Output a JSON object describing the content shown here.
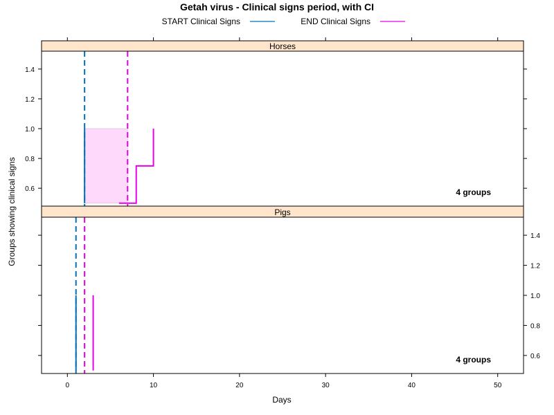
{
  "chart_data": {
    "type": "line",
    "title": "Getah virus - Clinical signs period, with CI",
    "xlabel": "Days",
    "ylabel": "Groups showing clinical signs",
    "xlim": [
      -3,
      53
    ],
    "x_ticks": [
      0,
      10,
      20,
      30,
      40,
      50
    ],
    "legend": {
      "placement": "top",
      "entries": [
        {
          "label": "START Clinical Signs",
          "color": "#0072bd"
        },
        {
          "label": "END Clinical Signs",
          "color": "#e600e6"
        }
      ]
    },
    "panels": [
      {
        "name": "Horses",
        "groups_label": "4 groups",
        "ylim": [
          0.48,
          1.52
        ],
        "y_ticks": [
          0.6,
          0.8,
          1.0,
          1.2,
          1.4
        ],
        "y_tick_side": "left",
        "start_median_day": 2,
        "end_median_day": 7,
        "start_series": {
          "x": [
            2,
            2
          ],
          "y": [
            0.5,
            1.0
          ]
        },
        "end_series": {
          "x": [
            6,
            8,
            8,
            10,
            10
          ],
          "y": [
            0.5,
            0.5,
            0.75,
            0.75,
            1.0
          ]
        },
        "ci_band": {
          "x0": 2,
          "x1": 7,
          "y0": 0.5,
          "y1": 1.0
        }
      },
      {
        "name": "Pigs",
        "groups_label": "4 groups",
        "ylim": [
          0.48,
          1.52
        ],
        "y_ticks": [
          0.6,
          0.8,
          1.0,
          1.2,
          1.4
        ],
        "y_tick_side": "right",
        "start_median_day": 1,
        "end_median_day": 2,
        "start_series": {
          "x": [
            1,
            1
          ],
          "y": [
            0.5,
            1.0
          ]
        },
        "end_series": {
          "x": [
            3,
            3
          ],
          "y": [
            0.5,
            1.0
          ]
        },
        "ci_band": null
      }
    ],
    "colors": {
      "start": "#0072bd",
      "end": "#e600e6",
      "band": "#ffd9fb",
      "strip": "#ffe5cc"
    },
    "grid": false
  }
}
